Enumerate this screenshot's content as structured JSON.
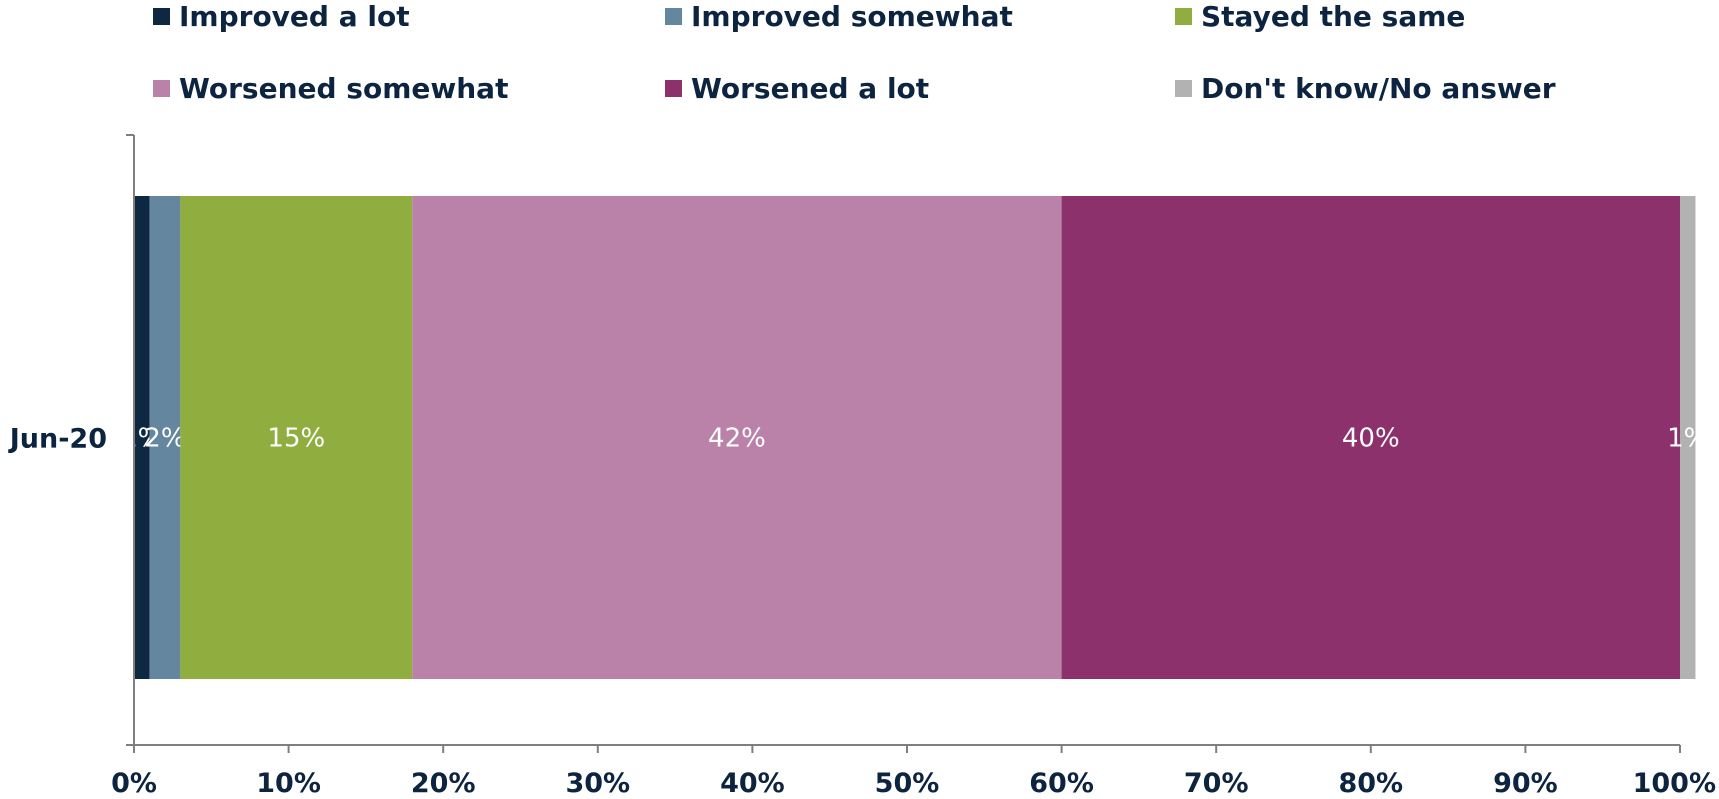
{
  "chart_data": {
    "type": "bar",
    "orientation": "horizontal",
    "stacked": true,
    "categories": [
      "Jun-20"
    ],
    "series": [
      {
        "name": "Improved a lot",
        "values": [
          1
        ],
        "label": "1%",
        "color": "#0e2841"
      },
      {
        "name": "Improved somewhat",
        "values": [
          2
        ],
        "label": "2%",
        "color": "#64879f"
      },
      {
        "name": "Stayed the same",
        "values": [
          15
        ],
        "label": "15%",
        "color": "#8fae3f"
      },
      {
        "name": "Worsened somewhat",
        "values": [
          42
        ],
        "label": "42%",
        "color": "#bb82a9"
      },
      {
        "name": "Worsened a lot",
        "values": [
          40
        ],
        "label": "40%",
        "color": "#8d316c"
      },
      {
        "name": "Don't know/No answer",
        "values": [
          1
        ],
        "label": "1%",
        "color": "#b2b2b2"
      }
    ],
    "x_ticks": [
      "0%",
      "10%",
      "20%",
      "30%",
      "40%",
      "50%",
      "60%",
      "70%",
      "80%",
      "90%",
      "100%"
    ],
    "xlim": [
      0,
      100
    ],
    "legend_position": "top",
    "grid": false
  }
}
